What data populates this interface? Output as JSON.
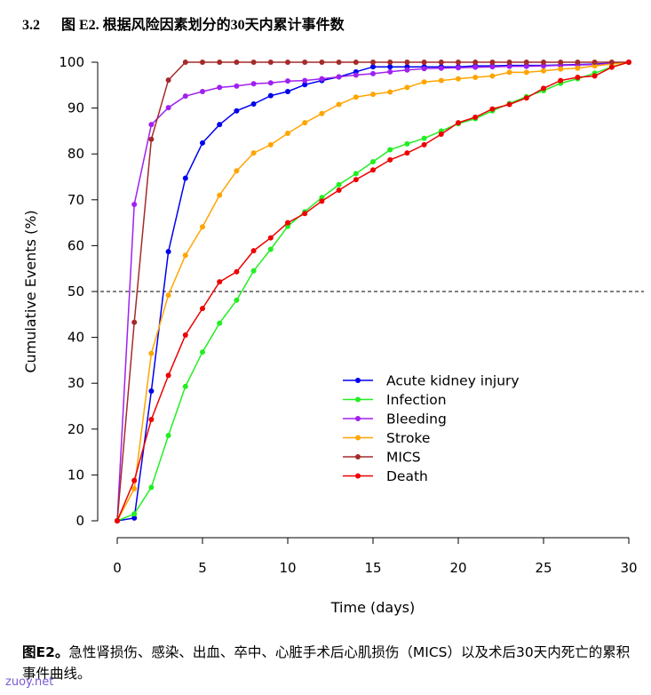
{
  "header": {
    "section_number": "3.2",
    "title": "图 E2. 根据风险因素划分的30天内累计事件数"
  },
  "caption": {
    "lead": "图E2。",
    "text": "急性肾损伤、感染、出血、卒中、心脏手术后心肌损伤（MICS）以及术后30天内死亡的累积事件曲线。"
  },
  "watermark": "zuoy.net",
  "chart_data": {
    "type": "line",
    "title": "",
    "xlabel": "Time (days)",
    "ylabel": "Cumulative Events (%)",
    "xlim": [
      0,
      30
    ],
    "ylim": [
      0,
      100
    ],
    "xticks": [
      0,
      5,
      10,
      15,
      20,
      25,
      30
    ],
    "yticks": [
      0,
      10,
      20,
      30,
      40,
      50,
      60,
      70,
      80,
      90,
      100
    ],
    "reference_line": {
      "y": 50,
      "style": "dashed"
    },
    "grid": false,
    "legend_position": "center-right",
    "x": [
      0,
      1,
      2,
      3,
      4,
      5,
      6,
      7,
      8,
      9,
      10,
      11,
      12,
      13,
      14,
      15,
      16,
      17,
      18,
      19,
      20,
      21,
      22,
      23,
      24,
      25,
      26,
      27,
      28,
      29,
      30
    ],
    "series": [
      {
        "name": "Acute kidney injury",
        "color": "#0000ee",
        "values": [
          0,
          0.6,
          28.3,
          58.7,
          74.7,
          82.4,
          86.4,
          89.4,
          90.9,
          92.7,
          93.6,
          95.1,
          96.0,
          96.8,
          97.9,
          99.0,
          99.0,
          99.0,
          99.0,
          99.0,
          99.0,
          99.2,
          99.2,
          99.3,
          99.3,
          99.3,
          99.4,
          99.5,
          99.6,
          99.8,
          100
        ]
      },
      {
        "name": "Infection",
        "color": "#22ee22",
        "values": [
          0,
          1.5,
          7.3,
          18.6,
          29.3,
          36.8,
          43.1,
          48.1,
          54.5,
          59.2,
          64.2,
          67.4,
          70.5,
          73.3,
          75.7,
          78.3,
          80.9,
          82.2,
          83.4,
          85.0,
          86.6,
          87.7,
          89.4,
          91.0,
          92.5,
          93.8,
          95.4,
          96.4,
          97.6,
          99.0,
          100
        ]
      },
      {
        "name": "Bleeding",
        "color": "#a020f0",
        "values": [
          0,
          69.0,
          86.4,
          90.1,
          92.6,
          93.6,
          94.5,
          94.8,
          95.3,
          95.5,
          95.9,
          96.0,
          96.4,
          96.8,
          97.2,
          97.5,
          97.9,
          98.3,
          98.6,
          98.7,
          98.8,
          98.9,
          99.0,
          99.1,
          99.1,
          99.2,
          99.3,
          99.4,
          99.5,
          99.7,
          100
        ]
      },
      {
        "name": "Stroke",
        "color": "#ffa500",
        "values": [
          0,
          7.0,
          36.5,
          49.2,
          57.9,
          64.1,
          71.0,
          76.3,
          80.2,
          82.0,
          84.5,
          86.8,
          88.8,
          90.8,
          92.4,
          93.0,
          93.5,
          94.5,
          95.7,
          96.0,
          96.4,
          96.7,
          97.0,
          97.8,
          97.8,
          98.1,
          98.5,
          98.7,
          99.2,
          99.6,
          100
        ]
      },
      {
        "name": "MICS",
        "color": "#a52a2a",
        "values": [
          0,
          43.3,
          83.2,
          96.1,
          100,
          100,
          100,
          100,
          100,
          100,
          100,
          100,
          100,
          100,
          100,
          100,
          100,
          100,
          100,
          100,
          100,
          100,
          100,
          100,
          100,
          100,
          100,
          100,
          100,
          100,
          100
        ]
      },
      {
        "name": "Death",
        "color": "#ee0000",
        "values": [
          0,
          8.8,
          22.1,
          31.7,
          40.5,
          46.3,
          52.1,
          54.3,
          58.9,
          61.7,
          65.0,
          67.0,
          69.7,
          72.1,
          74.4,
          76.5,
          78.7,
          80.2,
          82.0,
          84.3,
          86.8,
          88.0,
          89.8,
          90.8,
          92.2,
          94.3,
          96.0,
          96.7,
          97.0,
          98.9,
          100
        ]
      }
    ]
  }
}
